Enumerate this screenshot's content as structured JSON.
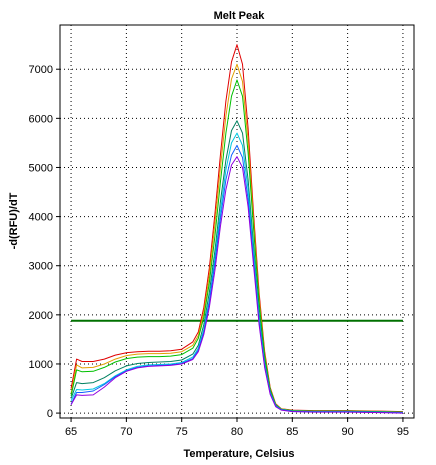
{
  "chart_data": {
    "type": "line",
    "title": "Melt Peak",
    "xlabel": "Temperature, Celsius",
    "ylabel": "-d(RFU)/dT",
    "xlim": [
      64,
      96
    ],
    "ylim": [
      -100,
      7900
    ],
    "xticks": [
      65,
      70,
      75,
      80,
      85,
      90,
      95
    ],
    "yticks": [
      0,
      1000,
      2000,
      3000,
      4000,
      5000,
      6000,
      7000
    ],
    "grid": true,
    "legend": "none",
    "threshold": {
      "value": 1880,
      "x_range": [
        65,
        95
      ],
      "color": "#007000"
    },
    "x": [
      65,
      65.5,
      66,
      67,
      68,
      69,
      70,
      71,
      72,
      73,
      74,
      75,
      76,
      76.5,
      77,
      77.5,
      78,
      78.5,
      79,
      79.5,
      80,
      80.5,
      81,
      81.5,
      82,
      82.5,
      83,
      83.5,
      84,
      85,
      87,
      90,
      93,
      95
    ],
    "series": [
      {
        "color": "#e00000",
        "values": [
          500,
          1100,
          1050,
          1050,
          1100,
          1180,
          1230,
          1250,
          1260,
          1260,
          1270,
          1300,
          1450,
          1650,
          2150,
          2950,
          4050,
          5250,
          6350,
          7150,
          7500,
          7100,
          5800,
          4050,
          2450,
          1250,
          520,
          190,
          90,
          60,
          50,
          50,
          40,
          30
        ]
      },
      {
        "color": "#e0a000",
        "values": [
          400,
          980,
          920,
          930,
          1000,
          1100,
          1170,
          1200,
          1210,
          1210,
          1220,
          1250,
          1380,
          1580,
          2050,
          2800,
          3850,
          5000,
          6050,
          6800,
          7100,
          6750,
          5550,
          3900,
          2350,
          1200,
          500,
          180,
          85,
          55,
          45,
          45,
          35,
          25
        ]
      },
      {
        "color": "#00c000",
        "values": [
          350,
          880,
          840,
          850,
          930,
          1040,
          1110,
          1140,
          1150,
          1150,
          1160,
          1190,
          1320,
          1520,
          1950,
          2650,
          3600,
          4700,
          5700,
          6450,
          6780,
          6450,
          5300,
          3750,
          2250,
          1150,
          480,
          170,
          80,
          50,
          40,
          40,
          30,
          20
        ]
      },
      {
        "color": "#008060",
        "values": [
          300,
          620,
          600,
          620,
          720,
          860,
          960,
          1010,
          1030,
          1040,
          1050,
          1080,
          1200,
          1380,
          1800,
          2450,
          3300,
          4300,
          5150,
          5750,
          5950,
          5700,
          4750,
          3400,
          2050,
          1050,
          440,
          160,
          75,
          45,
          35,
          35,
          25,
          15
        ]
      },
      {
        "color": "#00c8e0",
        "values": [
          250,
          480,
          470,
          490,
          600,
          760,
          880,
          950,
          980,
          990,
          1000,
          1030,
          1140,
          1320,
          1700,
          2300,
          3150,
          4100,
          4950,
          5500,
          5700,
          5450,
          4550,
          3250,
          1950,
          1000,
          420,
          150,
          70,
          40,
          30,
          30,
          20,
          10
        ]
      },
      {
        "color": "#1060ff",
        "values": [
          180,
          420,
          420,
          450,
          580,
          740,
          860,
          930,
          960,
          970,
          980,
          1010,
          1110,
          1280,
          1650,
          2250,
          3050,
          3950,
          4750,
          5250,
          5450,
          5200,
          4350,
          3100,
          1850,
          950,
          400,
          140,
          65,
          35,
          25,
          25,
          15,
          5
        ]
      },
      {
        "color": "#9000e0",
        "values": [
          170,
          370,
          360,
          370,
          530,
          720,
          850,
          920,
          950,
          960,
          970,
          1000,
          1090,
          1250,
          1600,
          2150,
          2900,
          3800,
          4550,
          5050,
          5220,
          5000,
          4200,
          3000,
          1800,
          920,
          380,
          130,
          60,
          30,
          20,
          20,
          10,
          0
        ]
      }
    ]
  }
}
